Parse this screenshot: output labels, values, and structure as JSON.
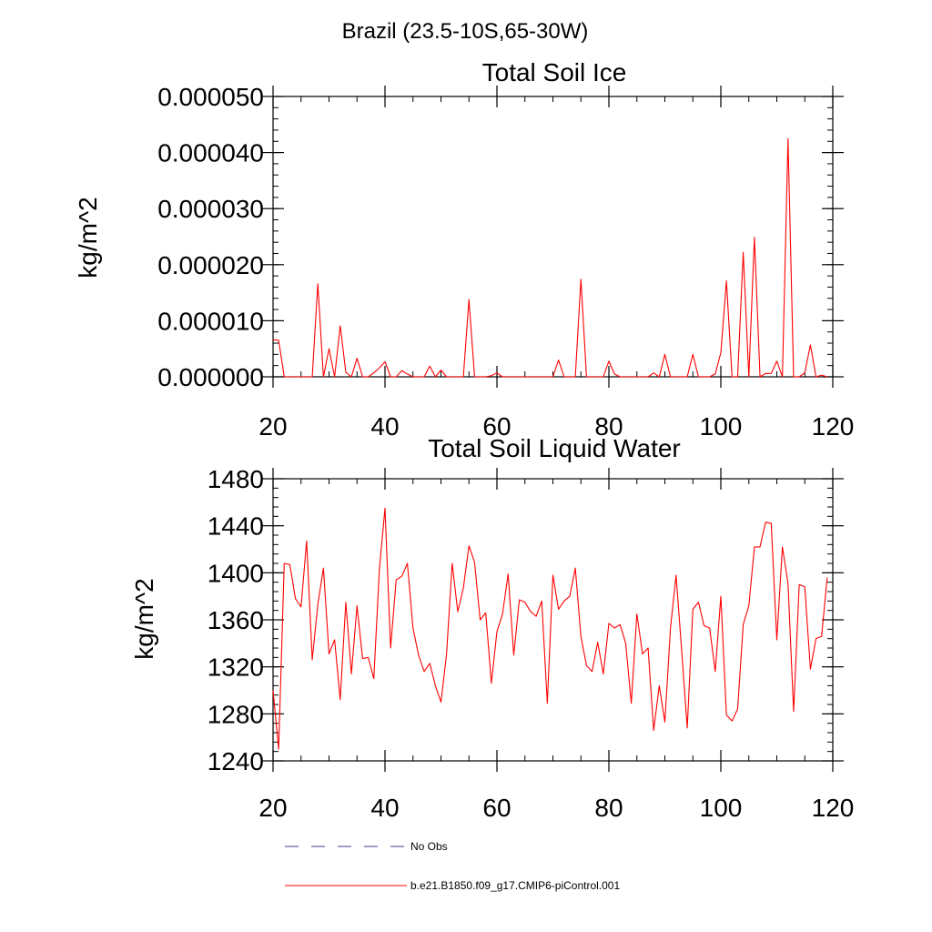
{
  "page_title": "Brazil (23.5-10S,65-30W)",
  "colors": {
    "model_line": "#ff0000",
    "obs_line": "#3b3b8f",
    "axis": "#000000"
  },
  "chart_data": [
    {
      "type": "line",
      "title": "Total Soil Ice",
      "xlabel": "",
      "ylabel": "kg/m^2",
      "xlim": [
        20,
        120
      ],
      "ylim": [
        0,
        5e-05
      ],
      "x_ticks": [
        20,
        40,
        60,
        80,
        100,
        120
      ],
      "x_tick_labels": [
        "20",
        "40",
        "60",
        "80",
        "100",
        "120"
      ],
      "y_ticks": [
        0,
        1e-05,
        2e-05,
        3e-05,
        4e-05,
        5e-05
      ],
      "y_tick_labels": [
        "0.000000",
        "0.000010",
        "0.000020",
        "0.000030",
        "0.000040",
        "0.000050"
      ],
      "x_minor_step": 5,
      "y_minor_step": 2e-06,
      "grid": false,
      "series": [
        {
          "name": "b.e21.B1850.f09_g17.CMIP6-piControl.001",
          "x_start": 20,
          "x_step": 1,
          "values": [
            6.6e-06,
            6.5e-06,
            0,
            0,
            0,
            0,
            0,
            0,
            1.66e-05,
            0,
            5e-06,
            0,
            9.1e-06,
            8e-07,
            0,
            3.3e-06,
            0,
            0,
            7e-07,
            1.6e-06,
            2.7e-06,
            0,
            0,
            1.1e-06,
            5e-07,
            0,
            0,
            0,
            1.9e-06,
            0,
            1.2e-06,
            0,
            0,
            0,
            0,
            1.38e-05,
            0,
            0,
            0,
            2e-07,
            7e-07,
            0,
            0,
            0,
            0,
            0,
            0,
            0,
            0,
            0,
            0,
            3e-06,
            0,
            0,
            0,
            1.74e-05,
            0,
            0,
            0,
            0,
            2.8e-06,
            5e-07,
            0,
            0,
            0,
            0,
            0,
            0,
            7e-07,
            0,
            4e-06,
            0,
            0,
            0,
            0,
            4e-06,
            0,
            0,
            0,
            5e-07,
            4.3e-06,
            1.71e-05,
            0,
            0,
            2.22e-05,
            0,
            2.49e-05,
            0,
            6e-07,
            6e-07,
            2.8e-06,
            0,
            4.25e-05,
            0,
            0,
            7e-07,
            5.7e-06,
            0,
            3e-07,
            0
          ]
        }
      ]
    },
    {
      "type": "line",
      "title": "Total Soil Liquid Water",
      "xlabel": "",
      "ylabel": "kg/m^2",
      "xlim": [
        20,
        120
      ],
      "ylim": [
        1240,
        1480
      ],
      "x_ticks": [
        20,
        40,
        60,
        80,
        100,
        120
      ],
      "x_tick_labels": [
        "20",
        "40",
        "60",
        "80",
        "100",
        "120"
      ],
      "y_ticks": [
        1240,
        1280,
        1320,
        1360,
        1400,
        1440,
        1480
      ],
      "y_tick_labels": [
        "1240",
        "1280",
        "1320",
        "1360",
        "1400",
        "1440",
        "1480"
      ],
      "x_minor_step": 5,
      "y_minor_step": 8,
      "grid": false,
      "series": [
        {
          "name": "b.e21.B1850.f09_g17.CMIP6-piControl.001",
          "x_start": 20,
          "x_step": 1,
          "values": [
            1300,
            1250,
            1408,
            1407,
            1378,
            1371,
            1427,
            1326,
            1373,
            1404,
            1331,
            1343,
            1292,
            1375,
            1314,
            1372,
            1327,
            1328,
            1310,
            1403,
            1455,
            1336,
            1394,
            1397,
            1408,
            1353,
            1330,
            1316,
            1323,
            1304,
            1290,
            1331,
            1408,
            1367,
            1387,
            1423,
            1409,
            1360,
            1366,
            1306,
            1350,
            1365,
            1399,
            1330,
            1377,
            1375,
            1367,
            1363,
            1376,
            1289,
            1398,
            1369,
            1376,
            1380,
            1404,
            1346,
            1321,
            1316,
            1341,
            1314,
            1357,
            1353,
            1356,
            1340,
            1289,
            1365,
            1331,
            1336,
            1266,
            1304,
            1273,
            1353,
            1398,
            1334,
            1268,
            1369,
            1375,
            1355,
            1353,
            1316,
            1380,
            1279,
            1274,
            1284,
            1356,
            1372,
            1422,
            1422,
            1443,
            1442,
            1343,
            1422,
            1391,
            1282,
            1390,
            1388,
            1318,
            1344,
            1346,
            1396
          ]
        }
      ]
    }
  ],
  "legend": {
    "placement": "bottom",
    "entries": [
      {
        "label": "No Obs",
        "style": "dashed",
        "color": "#3b3b8f"
      },
      {
        "label": "b.e21.B1850.f09_g17.CMIP6-piControl.001",
        "style": "solid",
        "color": "#ff0000"
      }
    ]
  }
}
